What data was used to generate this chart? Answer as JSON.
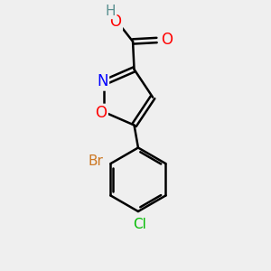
{
  "background_color": "#efefef",
  "atom_colors": {
    "C": "#000000",
    "H": "#5a9090",
    "N": "#0000ff",
    "O": "#ff0000",
    "Br": "#cc7722",
    "Cl": "#00bb00"
  },
  "figsize": [
    3.0,
    3.0
  ],
  "dpi": 100
}
